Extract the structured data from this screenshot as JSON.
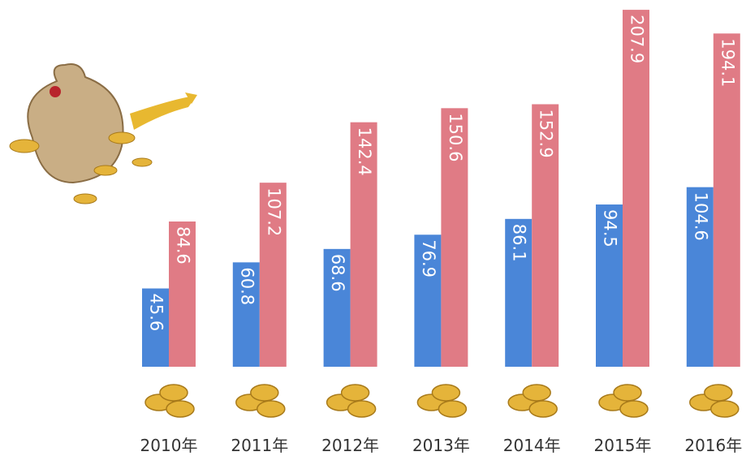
{
  "chart_data": {
    "type": "bar",
    "categories": [
      "2010年",
      "2011年",
      "2012年",
      "2013年",
      "2014年",
      "2015年",
      "2016年"
    ],
    "series": [
      {
        "color": "#4a86d8",
        "values": [
          45.6,
          60.8,
          68.6,
          76.9,
          86.1,
          94.5,
          104.6
        ]
      },
      {
        "color": "#e07b85",
        "values": [
          84.6,
          107.2,
          142.4,
          150.6,
          152.9,
          207.9,
          194.1
        ]
      }
    ]
  }
}
